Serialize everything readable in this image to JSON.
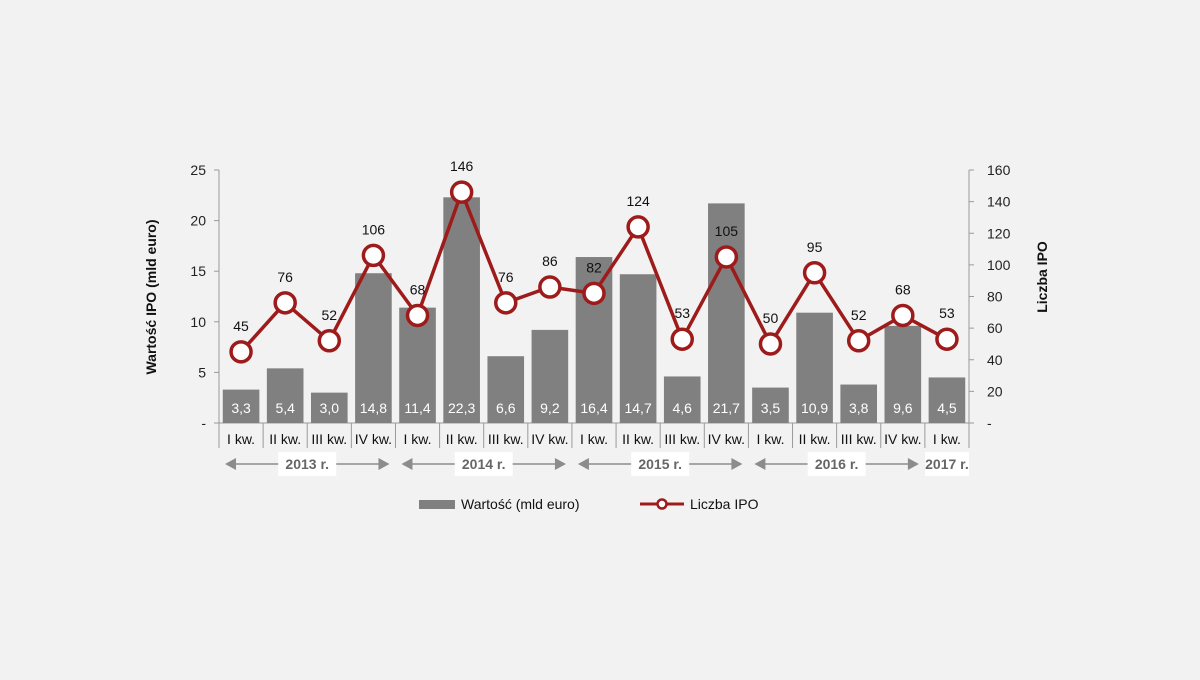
{
  "chart_data": {
    "type": "bar",
    "categories": [
      "I kw.",
      "II kw.",
      "III kw.",
      "IV kw.",
      "I kw.",
      "II kw.",
      "III kw.",
      "IV kw.",
      "I kw.",
      "II kw.",
      "III kw.",
      "IV kw.",
      "I kw.",
      "II kw.",
      "III kw.",
      "IV kw.",
      "I kw."
    ],
    "years": [
      {
        "label": "2013 r.",
        "from": 0,
        "to": 3
      },
      {
        "label": "2014 r.",
        "from": 4,
        "to": 7
      },
      {
        "label": "2015 r.",
        "from": 8,
        "to": 11
      },
      {
        "label": "2016 r.",
        "from": 12,
        "to": 15
      },
      {
        "label": "2017 r.",
        "from": 16,
        "to": 16
      }
    ],
    "series": [
      {
        "name": "Wartość (mld euro)",
        "type": "bar",
        "axis": "left",
        "color": "#808080",
        "values": [
          3.3,
          5.4,
          3.0,
          14.8,
          11.4,
          22.3,
          6.6,
          9.2,
          16.4,
          14.7,
          4.6,
          21.7,
          3.5,
          10.9,
          3.8,
          9.6,
          4.5
        ],
        "labels": [
          "3,3",
          "5,4",
          "3,0",
          "14,8",
          "11,4",
          "22,3",
          "6,6",
          "9,2",
          "16,4",
          "14,7",
          "4,6",
          "21,7",
          "3,5",
          "10,9",
          "3,8",
          "9,6",
          "4,5"
        ]
      },
      {
        "name": "Liczba IPO",
        "type": "line",
        "axis": "right",
        "color": "#9e1b1b",
        "values": [
          45,
          76,
          52,
          106,
          68,
          146,
          76,
          86,
          82,
          124,
          53,
          105,
          50,
          95,
          52,
          68,
          53
        ],
        "labels": [
          "45",
          "76",
          "52",
          "106",
          "68",
          "146",
          "76",
          "86",
          "82",
          "124",
          "53",
          "105",
          "50",
          "95",
          "52",
          "68",
          "53"
        ]
      }
    ],
    "ylabel": "Wartość IPO (mld euro)",
    "y2label": "Liczba IPO",
    "ylim": [
      0,
      25
    ],
    "y2lim": [
      0,
      160
    ],
    "yticks": [
      "-",
      "5",
      "10",
      "15",
      "20",
      "25"
    ],
    "y2ticks": [
      "-",
      "20",
      "40",
      "60",
      "80",
      "100",
      "120",
      "140",
      "160"
    ],
    "legend": "bottom",
    "grid": false
  }
}
